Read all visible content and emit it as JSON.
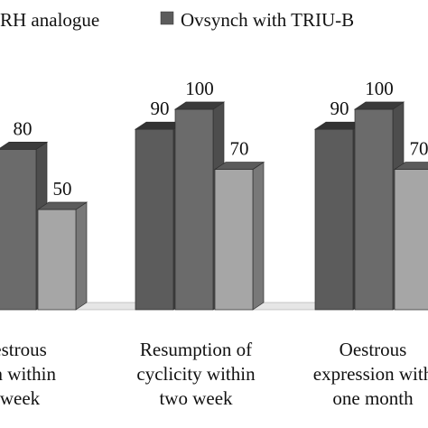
{
  "chart_data": {
    "type": "bar",
    "style": "3d-clustered-column",
    "legend": {
      "placement": "top",
      "entries": [
        {
          "series": "series_1",
          "label": "RH analogue"
        },
        {
          "series": "series_2",
          "label": "Ovsynch with TRIU-B"
        }
      ]
    },
    "categories": [
      [
        "estrous",
        "on within",
        "week"
      ],
      [
        "Resumption of",
        "cyclicity within",
        "two week"
      ],
      [
        "Oestrous",
        "expression with",
        "one month"
      ]
    ],
    "series": [
      {
        "name": "RH analogue",
        "values": [
          null,
          90,
          90
        ],
        "value_labels": [
          "",
          "90",
          "90"
        ],
        "color": "#5c5c5c"
      },
      {
        "name": "Ovsynch with TRIU-B",
        "values": [
          80,
          100,
          100
        ],
        "value_labels": [
          "80",
          "100",
          "100"
        ],
        "color": "#6b6b6b"
      },
      {
        "name": "",
        "values": [
          50,
          70,
          70
        ],
        "value_labels": [
          "50",
          "70",
          "70"
        ],
        "color": "#a6a6a6"
      }
    ],
    "ylim": [
      0,
      100
    ],
    "grid": false
  }
}
